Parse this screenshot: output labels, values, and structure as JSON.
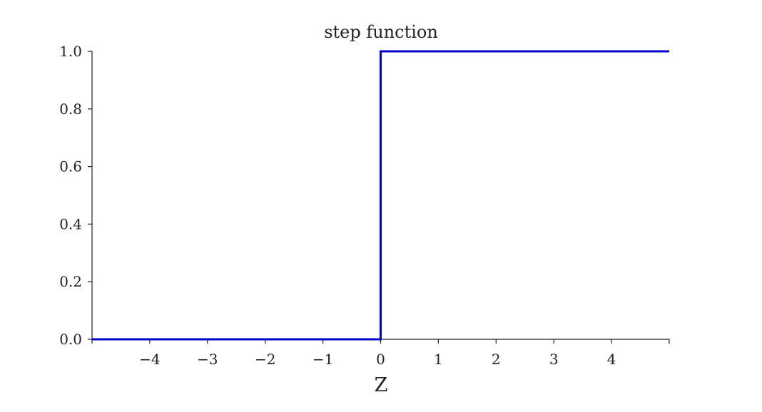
{
  "chart_data": {
    "type": "line",
    "title": "step function",
    "xlabel": "Z",
    "ylabel": "",
    "xlim": [
      -5,
      5
    ],
    "ylim": [
      0,
      1
    ],
    "xticks": [
      -4,
      -3,
      -2,
      -1,
      0,
      1,
      2,
      3,
      4
    ],
    "xtick_labels": [
      "−4",
      "−3",
      "−2",
      "−1",
      "0",
      "1",
      "2",
      "3",
      "4"
    ],
    "yticks": [
      0.0,
      0.2,
      0.4,
      0.6,
      0.8,
      1.0
    ],
    "ytick_labels": [
      "0.0",
      "0.2",
      "0.4",
      "0.6",
      "0.8",
      "1.0"
    ],
    "grid": false,
    "series": [
      {
        "x": [
          -5,
          0,
          0,
          5
        ],
        "y": [
          0,
          0,
          1,
          1
        ],
        "color": "#0000cc"
      }
    ]
  }
}
